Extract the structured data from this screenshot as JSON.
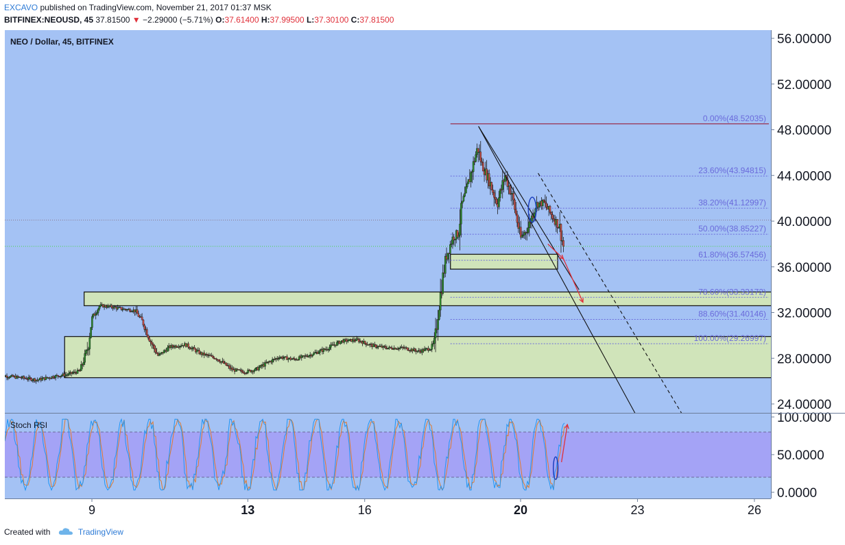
{
  "header": {
    "publisher": "EXCAVO",
    "published_text": "published on TradingView.com, November 21, 2017 01:37 MSK",
    "symbol_tf": "BITFINEX:NEOUSD, 45",
    "last": "37.81500",
    "change": "−2.29000 (−5.71%)",
    "o_label": "O:",
    "o": "37.61400",
    "h_label": "H:",
    "h": "37.99500",
    "l_label": "L:",
    "l": "37.30100",
    "c_label": "C:",
    "c": "37.81500"
  },
  "footer": {
    "created_with": "Created with",
    "brand": "TradingView"
  },
  "colors": {
    "plot_bg": "#a4c2f4",
    "rsi_band": "#a59ef6",
    "zone_fill": "#d5e8b4",
    "fib_line": "#6a6adb",
    "fib_top": "#9b3a5a",
    "bull": "#2e8b2e",
    "bear": "#c8504a",
    "arrow": "#e0303a",
    "marker": "#1c3fbf"
  },
  "chart_data": [
    {
      "type": "candlestick",
      "title": "NEO / Dollar, 45, BITFINEX",
      "ylim": [
        23,
        57
      ],
      "y_ticks": [
        "56.00000",
        "52.00000",
        "48.00000",
        "44.00000",
        "40.00000",
        "36.00000",
        "32.00000",
        "28.00000",
        "24.00000"
      ],
      "y_tick_values": [
        56,
        52,
        48,
        44,
        40,
        36,
        32,
        28,
        24
      ],
      "x_ticks": [
        "9",
        "13",
        "16",
        "20",
        "23",
        "26"
      ],
      "x_tick_values": [
        9,
        13,
        16,
        20,
        23,
        26
      ],
      "x_bold_ticks": [
        "13",
        "20"
      ],
      "xlim": [
        6.6,
        26.4
      ],
      "price_path": [
        [
          6.6,
          26.5
        ],
        [
          7.2,
          26.3
        ],
        [
          7.6,
          26.1
        ],
        [
          8.0,
          26.4
        ],
        [
          8.4,
          26.6
        ],
        [
          8.7,
          26.9
        ],
        [
          8.9,
          29.0
        ],
        [
          9.0,
          31.5
        ],
        [
          9.2,
          32.6
        ],
        [
          9.5,
          32.5
        ],
        [
          9.8,
          32.3
        ],
        [
          10.1,
          32.2
        ],
        [
          10.3,
          31.2
        ],
        [
          10.5,
          29.5
        ],
        [
          10.7,
          28.2
        ],
        [
          11.0,
          29.0
        ],
        [
          11.4,
          29.2
        ],
        [
          11.8,
          28.4
        ],
        [
          12.2,
          28.0
        ],
        [
          12.6,
          27.0
        ],
        [
          12.9,
          26.8
        ],
        [
          13.2,
          27.0
        ],
        [
          13.5,
          27.6
        ],
        [
          13.8,
          28.1
        ],
        [
          14.2,
          27.9
        ],
        [
          14.6,
          28.3
        ],
        [
          15.0,
          28.8
        ],
        [
          15.4,
          29.5
        ],
        [
          15.8,
          29.6
        ],
        [
          16.2,
          29.1
        ],
        [
          16.6,
          28.9
        ],
        [
          17.0,
          28.9
        ],
        [
          17.4,
          28.6
        ],
        [
          17.7,
          28.9
        ],
        [
          17.8,
          29.4
        ],
        [
          17.9,
          32.5
        ],
        [
          18.0,
          35.0
        ],
        [
          18.1,
          37.0
        ],
        [
          18.25,
          38.5
        ],
        [
          18.4,
          39.0
        ],
        [
          18.5,
          41.5
        ],
        [
          18.6,
          42.5
        ],
        [
          18.75,
          44.5
        ],
        [
          18.9,
          46.5
        ],
        [
          19.0,
          45.0
        ],
        [
          19.2,
          43.5
        ],
        [
          19.4,
          41.5
        ],
        [
          19.6,
          44.0
        ],
        [
          19.8,
          42.0
        ],
        [
          20.0,
          38.5
        ],
        [
          20.2,
          39.5
        ],
        [
          20.4,
          41.5
        ],
        [
          20.6,
          41.6
        ],
        [
          20.8,
          40.5
        ],
        [
          21.0,
          39.5
        ],
        [
          21.1,
          37.8
        ]
      ],
      "candle_seed": 7,
      "fib_levels": [
        {
          "label": "0.00%(48.52035)",
          "value": 48.52035
        },
        {
          "label": "23.60%(43.94815)",
          "value": 43.94815
        },
        {
          "label": "38.20%(41.12997)",
          "value": 41.12997
        },
        {
          "label": "50.00%(38.85227)",
          "value": 38.85227
        },
        {
          "label": "61.80%(36.57456)",
          "value": 36.57456
        },
        {
          "label": "78.60%(33.33172)",
          "value": 33.33172
        },
        {
          "label": "88.60%(31.40146)",
          "value": 31.40146
        },
        {
          "label": "100.00%(29.26997)",
          "value": 29.26997
        }
      ],
      "fib_x_start": 18.2,
      "horizontal_lines": [
        {
          "value": 40.1,
          "color": "#8a7a8a"
        },
        {
          "value": 37.8,
          "color": "#4ad64a"
        }
      ],
      "zones": [
        {
          "x": [
            18.2,
            20.95
          ],
          "y": [
            35.8,
            37.1
          ]
        },
        {
          "x": [
            8.8,
            27.7
          ],
          "y": [
            32.6,
            33.8
          ]
        },
        {
          "x": [
            8.3,
            28.4
          ],
          "y": [
            26.3,
            29.9
          ]
        }
      ],
      "trend_lines": [
        {
          "from": [
            18.92,
            48.3
          ],
          "to": [
            21.5,
            34.0
          ],
          "style": "solid"
        },
        {
          "from": [
            18.92,
            48.3
          ],
          "to": [
            23.0,
            22.8
          ],
          "style": "solid"
        },
        {
          "from": [
            20.45,
            44.2
          ],
          "to": [
            24.2,
            22.8
          ],
          "style": "dashed"
        }
      ],
      "arrows": [
        {
          "from": [
            20.7,
            38.0
          ],
          "to": [
            21.1,
            36.7
          ]
        },
        {
          "from": [
            21.1,
            36.7
          ],
          "to": [
            21.6,
            32.9
          ]
        }
      ],
      "ellipse": {
        "center": [
          20.3,
          41.0
        ],
        "rx_days": 0.1,
        "ry": 1.1
      }
    },
    {
      "type": "line",
      "title": "Stoch RSI",
      "ylim": [
        0,
        100
      ],
      "y_ticks": [
        "100.0000",
        "50.0000",
        "0.0000"
      ],
      "y_tick_values": [
        100,
        50,
        0
      ],
      "band": [
        20,
        80
      ],
      "series_colors": [
        "#2196f3",
        "#e07a2f"
      ],
      "oscillation_seed": 13,
      "arrow": {
        "from": [
          21.05,
          40
        ],
        "to": [
          21.2,
          90
        ]
      },
      "ellipse": {
        "center": [
          20.9,
          32
        ],
        "rx_days": 0.06,
        "ry": 15
      }
    }
  ]
}
